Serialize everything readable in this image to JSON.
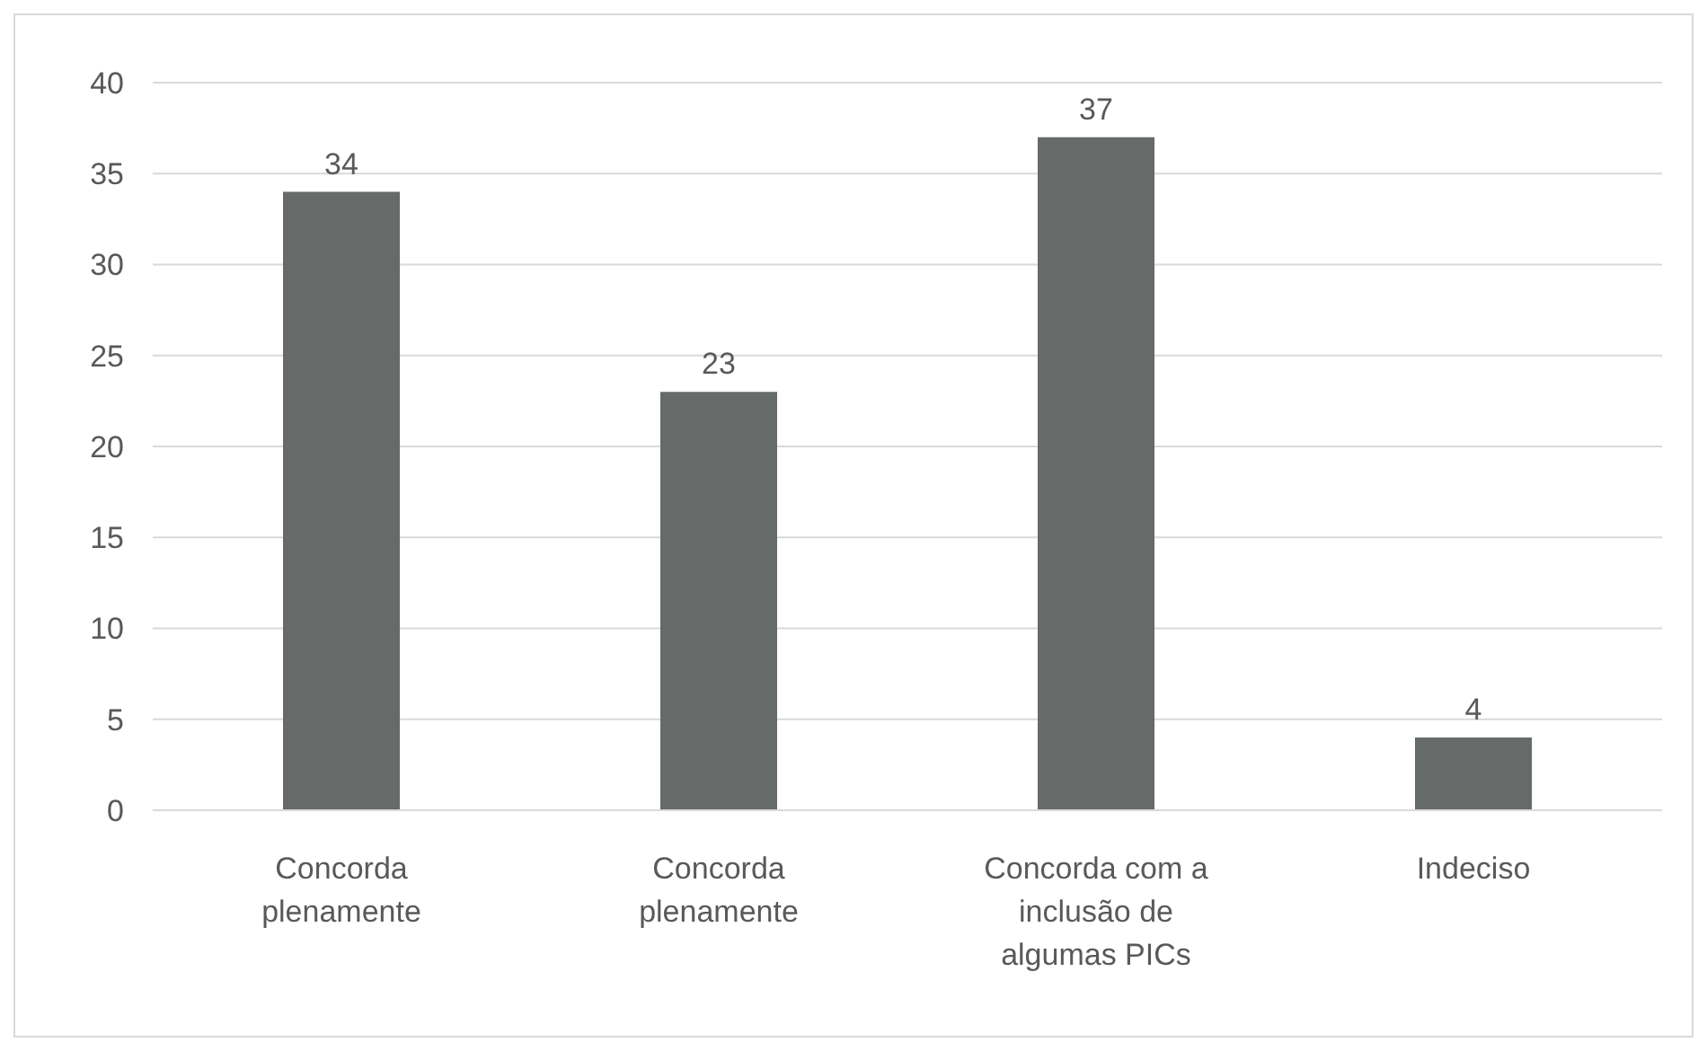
{
  "chart_data": {
    "type": "bar",
    "categories": [
      "Concorda plenamente",
      "Concorda plenamente",
      "Concorda com a inclusão de algumas PICs",
      "Indeciso"
    ],
    "values": [
      34,
      23,
      37,
      4
    ],
    "color": "#666a69",
    "ylim": [
      0,
      40
    ],
    "yticks": [
      0,
      5,
      10,
      15,
      20,
      25,
      30,
      35,
      40
    ],
    "grid": "y",
    "data_labels": true
  }
}
